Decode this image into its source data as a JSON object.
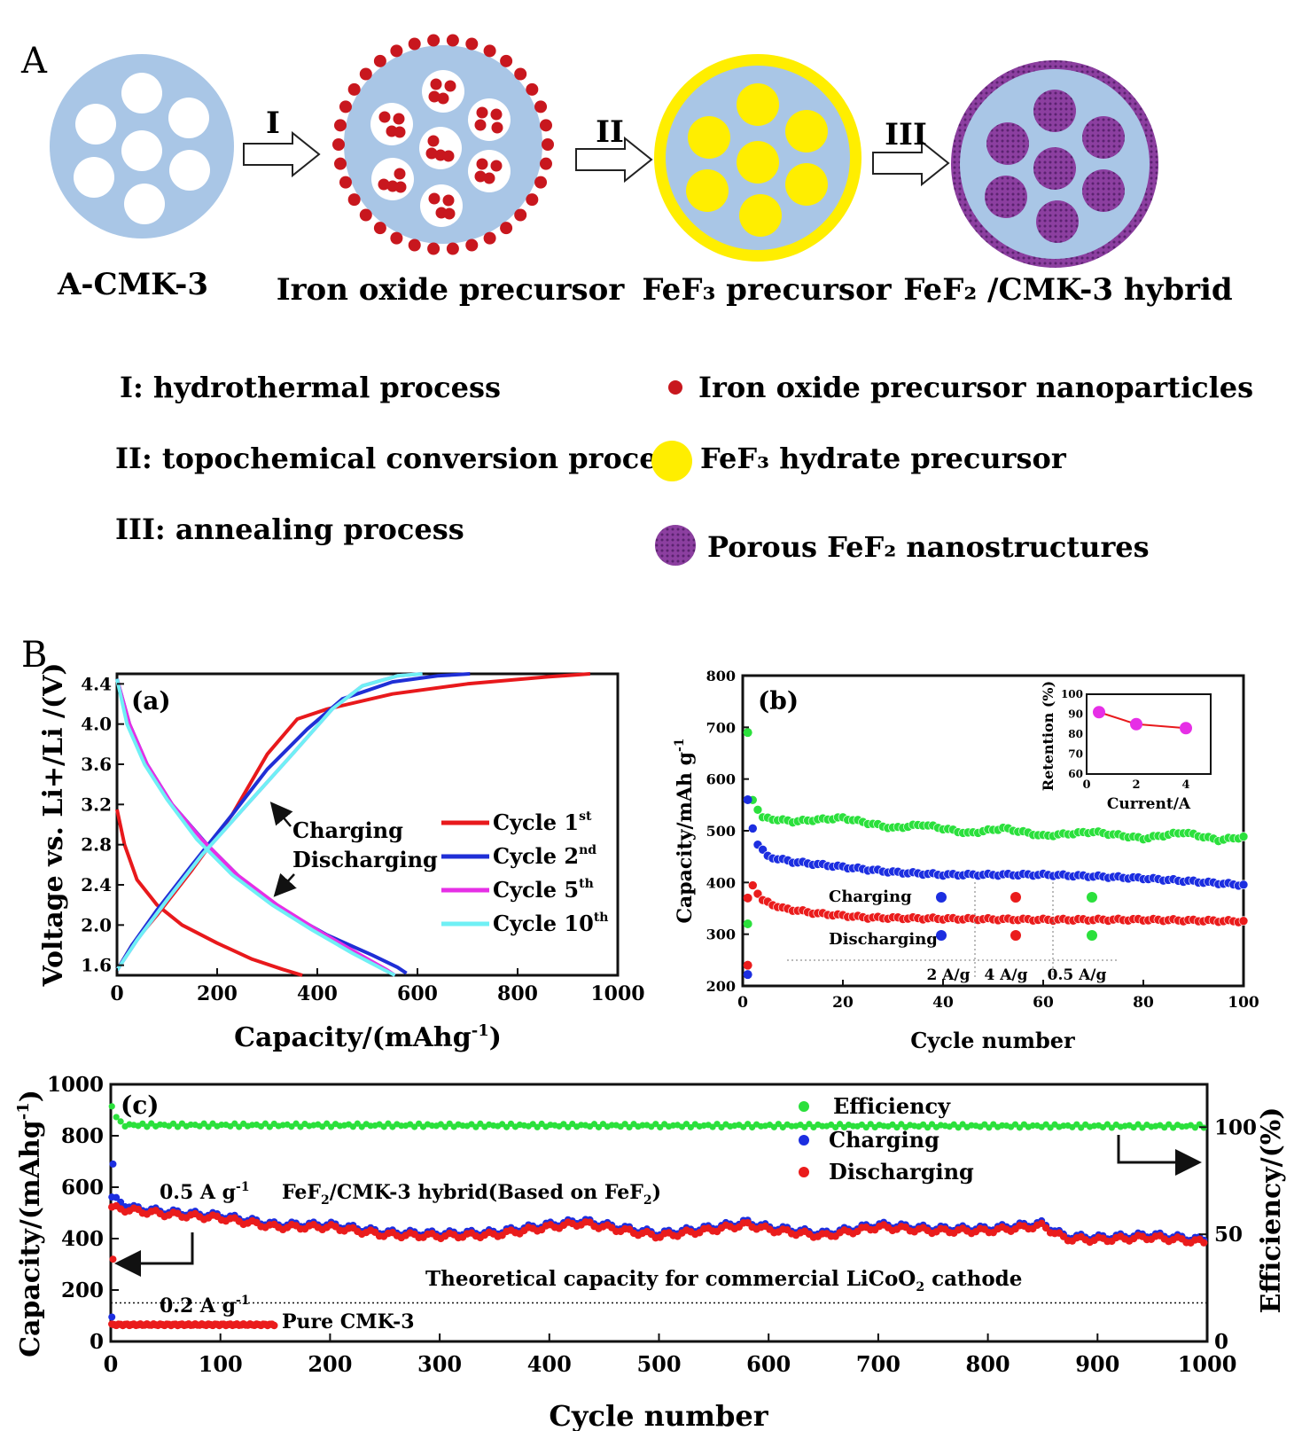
{
  "panel_labels": {
    "A": "A",
    "B": "B"
  },
  "schematic": {
    "stages": [
      "A-CMK-3",
      "Iron oxide precursor",
      "FeF₃ precursor",
      "FeF₂ /CMK-3 hybrid"
    ],
    "steps": [
      "I",
      "II",
      "III"
    ],
    "process_legend": [
      "I: hydrothermal process",
      "II: topochemical conversion process",
      "III: annealing process"
    ],
    "symbol_legend": [
      "Iron oxide precursor nanoparticles",
      "FeF₃ hydrate precursor",
      "Porous FeF₂ nanostructures"
    ],
    "colors": {
      "carbon": "#a9c6e6",
      "particle": "#c8171e",
      "fef3": "#ffee00",
      "fef2": "#8c3fa0",
      "fef2_dots": "#6a2a80"
    }
  },
  "chart_data": [
    {
      "id": "a",
      "type": "line",
      "panel_label": "(a)",
      "xlabel": "Capacity/(mAhg",
      "xlabel_sup": "-1",
      "xlabel_end": ")",
      "ylabel": "Voltage vs. Li+/Li /(V)",
      "xlim": [
        0,
        1000
      ],
      "ylim": [
        1.5,
        4.5
      ],
      "xticks": [
        0,
        200,
        400,
        600,
        800,
        1000
      ],
      "yticks": [
        1.6,
        2.0,
        2.4,
        2.8,
        3.2,
        3.6,
        4.0,
        4.4
      ],
      "annotations": [
        "Charging",
        "Discharging"
      ],
      "series": [
        {
          "name": "Cycle 1",
          "sup": "st",
          "color": "#e8191c",
          "charge": [
            [
              0,
              1.55
            ],
            [
              30,
              1.8
            ],
            [
              80,
              2.1
            ],
            [
              150,
              2.55
            ],
            [
              230,
              3.1
            ],
            [
              300,
              3.7
            ],
            [
              360,
              4.05
            ],
            [
              420,
              4.15
            ],
            [
              550,
              4.3
            ],
            [
              700,
              4.4
            ],
            [
              860,
              4.47
            ],
            [
              945,
              4.5
            ]
          ],
          "discharge": [
            [
              0,
              3.15
            ],
            [
              15,
              2.8
            ],
            [
              40,
              2.45
            ],
            [
              80,
              2.2
            ],
            [
              130,
              2.0
            ],
            [
              200,
              1.82
            ],
            [
              270,
              1.66
            ],
            [
              330,
              1.56
            ],
            [
              370,
              1.5
            ]
          ]
        },
        {
          "name": "Cycle 2",
          "sup": "nd",
          "color": "#1f2fd6",
          "charge": [
            [
              0,
              1.55
            ],
            [
              30,
              1.8
            ],
            [
              80,
              2.15
            ],
            [
              150,
              2.6
            ],
            [
              230,
              3.1
            ],
            [
              300,
              3.55
            ],
            [
              380,
              3.95
            ],
            [
              450,
              4.25
            ],
            [
              550,
              4.42
            ],
            [
              640,
              4.48
            ],
            [
              705,
              4.5
            ]
          ],
          "discharge": [
            [
              0,
              4.45
            ],
            [
              25,
              4.0
            ],
            [
              60,
              3.6
            ],
            [
              110,
              3.2
            ],
            [
              180,
              2.8
            ],
            [
              250,
              2.45
            ],
            [
              330,
              2.15
            ],
            [
              420,
              1.9
            ],
            [
              510,
              1.7
            ],
            [
              560,
              1.58
            ],
            [
              578,
              1.52
            ]
          ]
        },
        {
          "name": "Cycle 5",
          "sup": "th",
          "color": "#e62fe6",
          "charge": [
            [
              0,
              1.55
            ],
            [
              40,
              1.85
            ],
            [
              100,
              2.25
            ],
            [
              170,
              2.7
            ],
            [
              260,
              3.2
            ],
            [
              350,
              3.7
            ],
            [
              430,
              4.15
            ],
            [
              490,
              4.38
            ],
            [
              560,
              4.48
            ],
            [
              610,
              4.5
            ]
          ],
          "discharge": [
            [
              0,
              4.45
            ],
            [
              25,
              4.0
            ],
            [
              60,
              3.6
            ],
            [
              110,
              3.2
            ],
            [
              170,
              2.85
            ],
            [
              240,
              2.5
            ],
            [
              320,
              2.2
            ],
            [
              400,
              1.95
            ],
            [
              480,
              1.72
            ],
            [
              540,
              1.55
            ],
            [
              555,
              1.5
            ]
          ]
        },
        {
          "name": "Cycle 10",
          "sup": "th",
          "color": "#6ff0f5",
          "charge": [
            [
              0,
              1.55
            ],
            [
              40,
              1.85
            ],
            [
              100,
              2.25
            ],
            [
              170,
              2.7
            ],
            [
              260,
              3.2
            ],
            [
              350,
              3.7
            ],
            [
              430,
              4.15
            ],
            [
              490,
              4.38
            ],
            [
              560,
              4.48
            ],
            [
              610,
              4.5
            ]
          ],
          "discharge": [
            [
              0,
              4.45
            ],
            [
              20,
              4.0
            ],
            [
              55,
              3.6
            ],
            [
              100,
              3.25
            ],
            [
              160,
              2.85
            ],
            [
              230,
              2.5
            ],
            [
              310,
              2.2
            ],
            [
              390,
              1.95
            ],
            [
              470,
              1.72
            ],
            [
              535,
              1.55
            ],
            [
              555,
              1.5
            ]
          ]
        }
      ]
    },
    {
      "id": "b",
      "type": "scatter",
      "panel_label": "(b)",
      "xlabel": "Cycle number",
      "ylabel": "Capacity/mAh g",
      "ylabel_sup": "-1",
      "xlim": [
        0,
        100
      ],
      "ylim": [
        200,
        800
      ],
      "xticks": [
        0,
        20,
        40,
        60,
        80,
        100
      ],
      "yticks": [
        200,
        300,
        400,
        500,
        600,
        700,
        800
      ],
      "rate_labels": [
        "2 A/g",
        "4 A/g",
        "0.5 A/g"
      ],
      "legend": [
        "Charging",
        "Discharging"
      ],
      "series": [
        {
          "name": "green",
          "color": "#2be03c",
          "anchors": [
            [
              1,
              690
            ],
            [
              2,
              560
            ],
            [
              4,
              525
            ],
            [
              10,
              518
            ],
            [
              20,
              525
            ],
            [
              30,
              505
            ],
            [
              36,
              512
            ],
            [
              45,
              495
            ],
            [
              52,
              505
            ],
            [
              60,
              490
            ],
            [
              70,
              498
            ],
            [
              80,
              485
            ],
            [
              88,
              497
            ],
            [
              95,
              482
            ],
            [
              100,
              488
            ]
          ]
        },
        {
          "name": "blue",
          "color": "#1c2ee0",
          "anchors": [
            [
              1,
              560
            ],
            [
              2,
              505
            ],
            [
              3,
              475
            ],
            [
              5,
              450
            ],
            [
              10,
              440
            ],
            [
              20,
              430
            ],
            [
              30,
              420
            ],
            [
              40,
              415
            ],
            [
              50,
              415
            ],
            [
              60,
              415
            ],
            [
              70,
              412
            ],
            [
              80,
              408
            ],
            [
              90,
              402
            ],
            [
              100,
              395
            ]
          ]
        },
        {
          "name": "red",
          "color": "#ea1c1c",
          "anchors": [
            [
              1,
              370
            ],
            [
              2,
              395
            ],
            [
              4,
              365
            ],
            [
              8,
              350
            ],
            [
              15,
              340
            ],
            [
              25,
              332
            ],
            [
              40,
              330
            ],
            [
              60,
              328
            ],
            [
              80,
              328
            ],
            [
              100,
              325
            ]
          ]
        }
      ],
      "extra_points": [
        {
          "x": 1,
          "y": 320,
          "color": "#2be03c"
        },
        {
          "x": 1,
          "y": 240,
          "color": "#ea1c1c"
        },
        {
          "x": 1,
          "y": 222,
          "color": "#1c2ee0"
        }
      ],
      "inset": {
        "xlabel": "Current/A",
        "ylabel": "Retention (%)",
        "xlim": [
          0,
          5
        ],
        "ylim": [
          60,
          100
        ],
        "xticks": [
          0,
          2,
          4
        ],
        "yticks": [
          60,
          70,
          80,
          90,
          100
        ],
        "points": [
          [
            0.5,
            91
          ],
          [
            2,
            85
          ],
          [
            4,
            83
          ]
        ],
        "color": "#e62fe6",
        "line_color": "#e8191c"
      }
    },
    {
      "id": "c",
      "type": "scatter",
      "panel_label": "(c)",
      "xlabel": "Cycle number",
      "ylabel": "Capacity/(mAhg",
      "ylabel_sup": "-1",
      "ylabel_end": ")",
      "y2label": "Efficiency/(%)",
      "xlim": [
        0,
        1000
      ],
      "ylim": [
        0,
        1000
      ],
      "y2lim": [
        0,
        120
      ],
      "xticks": [
        0,
        100,
        200,
        300,
        400,
        500,
        600,
        700,
        800,
        900,
        1000
      ],
      "yticks": [
        0,
        200,
        400,
        600,
        800,
        1000
      ],
      "y2ticks": [
        0,
        50,
        100
      ],
      "legend": [
        "Efficiency",
        "Charging",
        "Discharging"
      ],
      "annotations": {
        "rate1": "0.5 A g",
        "rate1_sup": "-1",
        "hybrid_label": "FeF",
        "hybrid_sub": "2",
        "hybrid_mid": "/CMK-3 hybrid(Based on FeF",
        "hybrid_end": ")",
        "theory": "Theoretical capacity for commercial LiCoO",
        "theory_sub": "2",
        "theory_end": " cathode",
        "rate2": "0.2 A g",
        "rate2_sup": "-1",
        "pure": "Pure CMK-3"
      },
      "theoretical_capacity": 150,
      "efficiency": {
        "color": "#2be03c",
        "values_pct": [
          [
            0,
            110
          ],
          [
            10,
            101
          ],
          [
            1000,
            100.5
          ]
        ]
      },
      "charging": {
        "color": "#1c2ee0",
        "anchors": [
          [
            0,
            560
          ],
          [
            20,
            520
          ],
          [
            50,
            505
          ],
          [
            100,
            490
          ],
          [
            150,
            455
          ],
          [
            200,
            455
          ],
          [
            250,
            425
          ],
          [
            300,
            420
          ],
          [
            350,
            425
          ],
          [
            400,
            455
          ],
          [
            430,
            470
          ],
          [
            470,
            440
          ],
          [
            500,
            420
          ],
          [
            550,
            445
          ],
          [
            580,
            465
          ],
          [
            600,
            445
          ],
          [
            650,
            420
          ],
          [
            700,
            455
          ],
          [
            750,
            440
          ],
          [
            800,
            440
          ],
          [
            850,
            460
          ],
          [
            870,
            410
          ],
          [
            900,
            405
          ],
          [
            950,
            415
          ],
          [
            1000,
            395
          ]
        ]
      },
      "discharging": {
        "color": "#ea1c1c",
        "anchors": [
          [
            0,
            520
          ],
          [
            20,
            510
          ],
          [
            50,
            495
          ],
          [
            100,
            480
          ],
          [
            150,
            445
          ],
          [
            200,
            445
          ],
          [
            250,
            415
          ],
          [
            300,
            410
          ],
          [
            350,
            415
          ],
          [
            400,
            445
          ],
          [
            430,
            460
          ],
          [
            470,
            430
          ],
          [
            500,
            410
          ],
          [
            550,
            435
          ],
          [
            580,
            455
          ],
          [
            600,
            435
          ],
          [
            650,
            410
          ],
          [
            700,
            445
          ],
          [
            750,
            430
          ],
          [
            800,
            430
          ],
          [
            850,
            450
          ],
          [
            870,
            400
          ],
          [
            900,
            395
          ],
          [
            950,
            405
          ],
          [
            1000,
            385
          ]
        ]
      },
      "pure_cmk": {
        "color": "#ea1c1c",
        "x_end": 150,
        "value": 65
      }
    }
  ]
}
